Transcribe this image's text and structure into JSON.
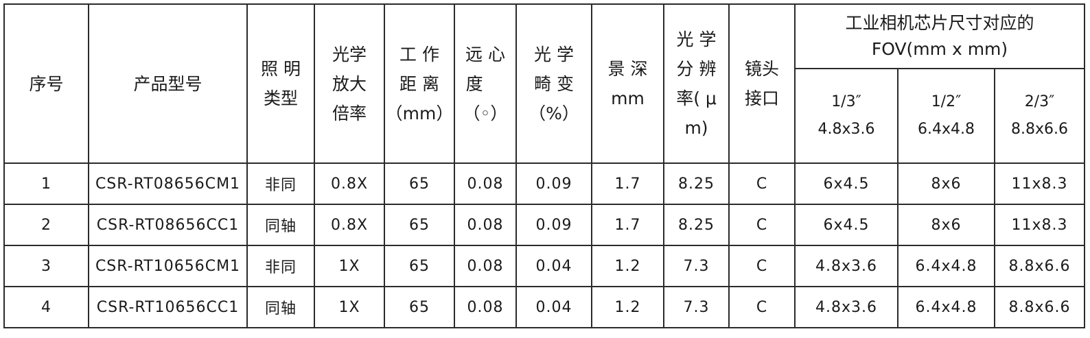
{
  "table": {
    "headers": [
      {
        "key": "index",
        "lines": [
          "序号"
        ]
      },
      {
        "key": "model",
        "lines": [
          "产品型号"
        ]
      },
      {
        "key": "illumination",
        "lines": [
          "照 明",
          "类型"
        ]
      },
      {
        "key": "magnification",
        "lines": [
          "光学",
          "放大",
          "倍率"
        ]
      },
      {
        "key": "working_distance",
        "lines": [
          "工 作",
          "距 离",
          "（mm）"
        ]
      },
      {
        "key": "telecentricity",
        "lines": [
          "远 心",
          "度    ",
          "（◦）"
        ]
      },
      {
        "key": "distortion",
        "lines": [
          "光 学",
          "畸 变",
          "（%）"
        ]
      },
      {
        "key": "depth_of_field",
        "lines": [
          "景 深",
          "mm"
        ]
      },
      {
        "key": "resolution",
        "lines": [
          "光 学",
          "分 辨",
          "率( μ",
          "m)"
        ]
      },
      {
        "key": "mount",
        "lines": [
          "镜头",
          "接口"
        ]
      }
    ],
    "fov_group": {
      "lines": [
        "工业相机芯片尺寸对应的",
        "FOV(mm x mm)"
      ],
      "sub_headers": [
        {
          "lines": [
            "1/3″",
            "4.8x3.6"
          ]
        },
        {
          "lines": [
            "1/2″",
            "6.4x4.8"
          ]
        },
        {
          "lines": [
            "2/3″",
            "8.8x6.6"
          ]
        }
      ]
    },
    "rows": [
      [
        "1",
        "CSR-RT08656CM1",
        "非同",
        "0.8X",
        "65",
        "0.08",
        "0.09",
        "1.7",
        "8.25",
        "C",
        "6x4.5",
        "8x6",
        "11x8.3"
      ],
      [
        "2",
        "CSR-RT08656CC1",
        "同轴",
        "0.8X",
        "65",
        "0.08",
        "0.09",
        "1.7",
        "8.25",
        "C",
        "6x4.5",
        "8x6",
        "11x8.3"
      ],
      [
        "3",
        "CSR-RT10656CM1",
        "非同",
        "1X",
        "65",
        "0.08",
        "0.04",
        "1.2",
        "7.3",
        "C",
        "4.8x3.6",
        "6.4x4.8",
        "8.8x6.6"
      ],
      [
        "4",
        "CSR-RT10656CC1",
        "同轴",
        "1X",
        "65",
        "0.08",
        "0.04",
        "1.2",
        "7.3",
        "C",
        "4.8x3.6",
        "6.4x4.8",
        "8.8x6.6"
      ]
    ]
  }
}
